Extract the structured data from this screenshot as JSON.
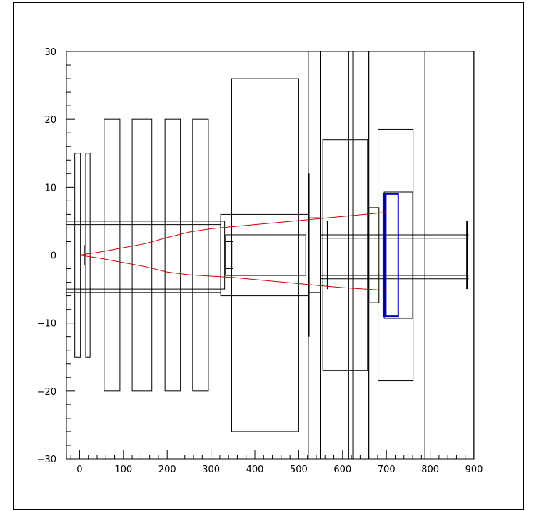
{
  "chart_data": {
    "type": "diagram",
    "x_axis": {
      "range": [
        -30,
        900
      ],
      "ticks": [
        {
          "value": 0,
          "label": "0"
        },
        {
          "value": 100,
          "label": "100"
        },
        {
          "value": 200,
          "label": "200"
        },
        {
          "value": 300,
          "label": "300"
        },
        {
          "value": 400,
          "label": "400"
        },
        {
          "value": 500,
          "label": "500"
        },
        {
          "value": 600,
          "label": "600"
        },
        {
          "value": 700,
          "label": "700"
        },
        {
          "value": 800,
          "label": "800"
        },
        {
          "value": 900,
          "label": "900"
        }
      ]
    },
    "y_axis": {
      "range": [
        -30,
        30
      ],
      "ticks": [
        {
          "value": 30,
          "label": "30"
        },
        {
          "value": 20,
          "label": "20"
        },
        {
          "value": 10,
          "label": "10"
        },
        {
          "value": 0,
          "label": "0"
        },
        {
          "value": -10,
          "label": "−10"
        },
        {
          "value": -20,
          "label": "−20"
        },
        {
          "value": -30,
          "label": "−30"
        }
      ]
    },
    "grid": false,
    "colors": {
      "outline": "#000000",
      "track": "#cc0000",
      "detector": "#0000cc"
    },
    "boxes": [
      {
        "x": [
          -11,
          2
        ],
        "y": [
          -15,
          15
        ]
      },
      {
        "x": [
          14,
          24
        ],
        "y": [
          -15,
          15
        ]
      },
      {
        "x": [
          56,
          92
        ],
        "y": [
          -20,
          20
        ]
      },
      {
        "x": [
          120,
          165
        ],
        "y": [
          -20,
          20
        ]
      },
      {
        "x": [
          195,
          230
        ],
        "y": [
          -20,
          20
        ]
      },
      {
        "x": [
          258,
          294
        ],
        "y": [
          -20,
          20
        ]
      },
      {
        "x": [
          347,
          500
        ],
        "y": [
          -26,
          26
        ]
      },
      {
        "x": [
          322,
          522
        ],
        "y": [
          -6,
          6
        ]
      },
      {
        "x": [
          333,
          516
        ],
        "y": [
          -3,
          3
        ]
      },
      {
        "x": [
          333,
          350
        ],
        "y": [
          -2,
          2
        ]
      },
      {
        "x": [
          322,
          331
        ],
        "y": [
          -5,
          5
        ]
      },
      {
        "x": [
          522,
          549
        ],
        "y": [
          -30,
          30
        ]
      },
      {
        "x": [
          549,
          660
        ],
        "y": [
          -30,
          30
        ]
      },
      {
        "x": [
          555,
          657
        ],
        "y": [
          -17,
          17
        ]
      },
      {
        "x": [
          660,
          788
        ],
        "y": [
          -30,
          30
        ]
      },
      {
        "x": [
          681,
          761
        ],
        "y": [
          -18.5,
          18.5
        ]
      },
      {
        "x": [
          788,
          898
        ],
        "y": [
          -30,
          30
        ]
      },
      {
        "x": [
          660,
          683
        ],
        "y": [
          -7,
          7
        ]
      },
      {
        "x": [
          695,
          760
        ],
        "y": [
          -9.3,
          9.3
        ]
      },
      {
        "x": [
          522,
          550
        ],
        "y": [
          -5.5,
          5.5
        ]
      }
    ],
    "beam_lines": [
      {
        "x": [
          -30,
          322
        ],
        "y": 5
      },
      {
        "x": [
          -30,
          322
        ],
        "y": 4.5
      },
      {
        "x": [
          -30,
          322
        ],
        "y": -5
      },
      {
        "x": [
          -30,
          322
        ],
        "y": -5.5
      },
      {
        "x": [
          550,
          888
        ],
        "y": 3
      },
      {
        "x": [
          550,
          888
        ],
        "y": 2.5
      },
      {
        "x": [
          550,
          888
        ],
        "y": -3
      },
      {
        "x": [
          550,
          888
        ],
        "y": -3.5
      }
    ],
    "planes": [
      {
        "x": 523,
        "y": [
          -12,
          12
        ],
        "bold": true
      },
      {
        "x": 566,
        "y": [
          -5,
          5
        ],
        "bold": true
      },
      {
        "x": 614,
        "y": [
          -30,
          30
        ],
        "bold": false
      },
      {
        "x": 624,
        "y": [
          -30,
          30
        ],
        "bold": true
      },
      {
        "x": 884,
        "y": [
          -5,
          5
        ],
        "bold": true
      },
      {
        "x": 11,
        "y": [
          -1.5,
          1.5
        ],
        "bold": false
      }
    ],
    "detector": {
      "x": [
        693,
        727
      ],
      "y": [
        -9,
        9
      ]
    },
    "tracks": [
      {
        "x": [
          -30,
          0,
          50,
          100,
          150,
          200,
          250,
          300,
          350,
          400,
          450,
          500,
          550,
          600,
          650,
          700
        ],
        "y": [
          0,
          0,
          0.5,
          1.1,
          1.7,
          2.6,
          3.4,
          3.9,
          4.2,
          4.5,
          4.8,
          5.1,
          5.4,
          5.7,
          6.0,
          6.3
        ]
      },
      {
        "x": [
          -30,
          0,
          50,
          100,
          150,
          200,
          250,
          300,
          350,
          400,
          450,
          500,
          550,
          600,
          650,
          700
        ],
        "y": [
          0,
          0,
          -0.5,
          -1.1,
          -1.7,
          -2.5,
          -2.9,
          -3.1,
          -3.3,
          -3.6,
          -3.9,
          -4.2,
          -4.5,
          -4.8,
          -5.0,
          -5.2
        ]
      }
    ]
  }
}
